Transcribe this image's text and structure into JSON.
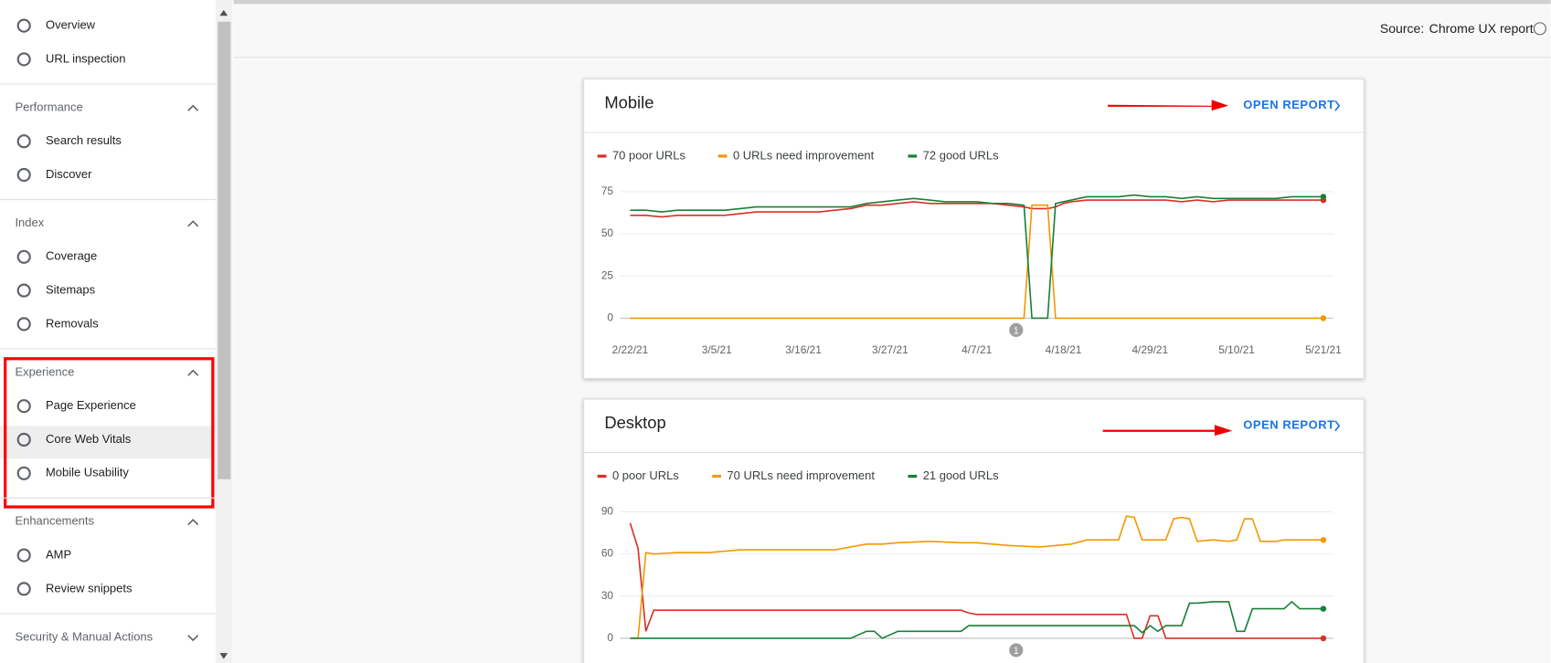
{
  "sidebar": {
    "top": [
      "Overview",
      "URL inspection"
    ],
    "sections": [
      {
        "title": "Performance",
        "items": [
          "Search results",
          "Discover"
        ]
      },
      {
        "title": "Index",
        "items": [
          "Coverage",
          "Sitemaps",
          "Removals"
        ]
      },
      {
        "title": "Experience",
        "items": [
          "Page Experience",
          "Core Web Vitals",
          "Mobile Usability"
        ]
      },
      {
        "title": "Enhancements",
        "items": [
          "AMP",
          "Review snippets"
        ]
      },
      {
        "title": "Security & Manual Actions",
        "items": []
      }
    ]
  },
  "header": {
    "source_label": "Source:",
    "source_value": "Chrome UX report"
  },
  "chart_data": [
    {
      "type": "line",
      "title": "Mobile",
      "link": "OPEN REPORT",
      "x": [
        0,
        2,
        4,
        6,
        8,
        10,
        12,
        14,
        16,
        18,
        20,
        22,
        24,
        26,
        28,
        30,
        32,
        34,
        36,
        38,
        40,
        42,
        44,
        46,
        48,
        50,
        51,
        52,
        53,
        54,
        55,
        56,
        58,
        60,
        62,
        64,
        66,
        68,
        70,
        72,
        74,
        76,
        78,
        80,
        82,
        84,
        86,
        88
      ],
      "xlim": [
        0,
        88
      ],
      "xticks": [
        {
          "value": 0,
          "label": "2/22/21"
        },
        {
          "value": 11,
          "label": "3/5/21"
        },
        {
          "value": 22,
          "label": "3/16/21"
        },
        {
          "value": 33,
          "label": "3/27/21"
        },
        {
          "value": 44,
          "label": "4/7/21"
        },
        {
          "value": 55,
          "label": "4/18/21"
        },
        {
          "value": 66,
          "label": "4/29/21"
        },
        {
          "value": 77,
          "label": "5/10/21"
        },
        {
          "value": 88,
          "label": "5/21/21"
        }
      ],
      "ylim": [
        0,
        75
      ],
      "yticks": [
        0,
        25,
        50,
        75
      ],
      "grid": true,
      "annotations": [
        {
          "x": 49,
          "label": "1"
        }
      ],
      "series": [
        {
          "name": "70 poor URLs",
          "color": "#d93025",
          "values": [
            61,
            61,
            60,
            61,
            61,
            61,
            61,
            62,
            63,
            63,
            63,
            63,
            63,
            64,
            65,
            67,
            67,
            68,
            69,
            68,
            68,
            68,
            68,
            68,
            67,
            66,
            65,
            65,
            65,
            66,
            68,
            69,
            70,
            70,
            70,
            70,
            70,
            70,
            69,
            70,
            69,
            70,
            70,
            70,
            70,
            70,
            70,
            70
          ]
        },
        {
          "name": "0 URLs need improvement",
          "color": "#f29900",
          "values": [
            0,
            0,
            0,
            0,
            0,
            0,
            0,
            0,
            0,
            0,
            0,
            0,
            0,
            0,
            0,
            0,
            0,
            0,
            0,
            0,
            0,
            0,
            0,
            0,
            0,
            0,
            67,
            67,
            67,
            0,
            0,
            0,
            0,
            0,
            0,
            0,
            0,
            0,
            0,
            0,
            0,
            0,
            0,
            0,
            0,
            0,
            0,
            0
          ]
        },
        {
          "name": "72 good URLs",
          "color": "#188038",
          "values": [
            64,
            64,
            63,
            64,
            64,
            64,
            64,
            65,
            66,
            66,
            66,
            66,
            66,
            66,
            66,
            68,
            69,
            70,
            71,
            70,
            69,
            69,
            69,
            68,
            68,
            67,
            0,
            0,
            0,
            68,
            69,
            70,
            72,
            72,
            72,
            73,
            72,
            72,
            71,
            72,
            71,
            71,
            71,
            71,
            71,
            72,
            72,
            72
          ]
        }
      ]
    },
    {
      "type": "line",
      "title": "Desktop",
      "link": "OPEN REPORT",
      "x": [
        0,
        1,
        2,
        3,
        6,
        10,
        14,
        18,
        22,
        26,
        28,
        30,
        31,
        32,
        34,
        38,
        42,
        43,
        44,
        48,
        52,
        56,
        58,
        62,
        63,
        64,
        65,
        66,
        67,
        68,
        69,
        70,
        71,
        72,
        74,
        76,
        77,
        78,
        79,
        80,
        82,
        83,
        84,
        85,
        88
      ],
      "xlim": [
        0,
        88
      ],
      "ylim": [
        0,
        90
      ],
      "yticks": [
        0,
        30,
        60,
        90
      ],
      "grid": true,
      "annotations": [
        {
          "x": 49,
          "label": "1"
        }
      ],
      "series": [
        {
          "name": "0 poor URLs",
          "color": "#d93025",
          "values": [
            82,
            64,
            5,
            20,
            20,
            20,
            20,
            20,
            20,
            20,
            20,
            20,
            20,
            20,
            20,
            20,
            20,
            18,
            17,
            17,
            17,
            17,
            17,
            17,
            17,
            0,
            0,
            16,
            16,
            0,
            0,
            0,
            0,
            0,
            0,
            0,
            0,
            0,
            0,
            0,
            0,
            0,
            0,
            0,
            0
          ]
        },
        {
          "name": "70 URLs need improvement",
          "color": "#f29900",
          "values": [
            0,
            0,
            61,
            60,
            61,
            61,
            63,
            63,
            63,
            63,
            65,
            67,
            67,
            67,
            68,
            69,
            68,
            68,
            68,
            66,
            65,
            67,
            70,
            70,
            87,
            86,
            70,
            70,
            70,
            70,
            85,
            86,
            85,
            69,
            70,
            69,
            70,
            85,
            85,
            69,
            69,
            70,
            70,
            70,
            70
          ]
        },
        {
          "name": "21 good URLs",
          "color": "#188038",
          "values": [
            0,
            0,
            0,
            0,
            0,
            0,
            0,
            0,
            0,
            0,
            0,
            5,
            5,
            0,
            5,
            5,
            5,
            9,
            9,
            9,
            9,
            9,
            9,
            9,
            9,
            9,
            4,
            9,
            5,
            9,
            9,
            9,
            25,
            25,
            26,
            26,
            5,
            5,
            21,
            21,
            21,
            21,
            26,
            21,
            21
          ]
        }
      ]
    }
  ]
}
